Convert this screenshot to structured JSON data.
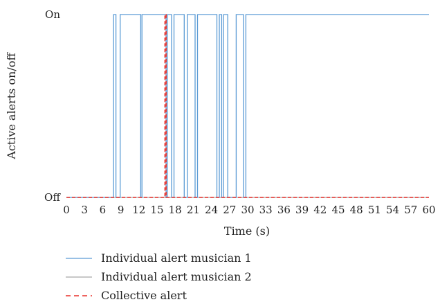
{
  "chart_data": {
    "type": "line",
    "title": "",
    "xlabel": "Time (s)",
    "ylabel": "Active alerts on/off",
    "xlim": [
      0,
      60
    ],
    "ylim": [
      0,
      1
    ],
    "x_ticks": [
      "0",
      "3",
      "6",
      "9",
      "12",
      "15",
      "18",
      "21",
      "24",
      "27",
      "30",
      "33",
      "36",
      "39",
      "42",
      "45",
      "48",
      "51",
      "54",
      "57",
      "60"
    ],
    "y_ticks": [
      {
        "value": 0,
        "label": "Off"
      },
      {
        "value": 1,
        "label": "On"
      }
    ],
    "grid": false,
    "legend_position": "bottom-left",
    "series": [
      {
        "name": "Individual alert musician 1",
        "color": "#5b9bd5",
        "style": "solid",
        "points": [
          [
            0,
            0
          ],
          [
            7.8,
            0
          ],
          [
            7.8,
            1
          ],
          [
            8.2,
            1
          ],
          [
            8.2,
            0
          ],
          [
            8.9,
            0
          ],
          [
            8.9,
            1
          ],
          [
            12.3,
            1
          ],
          [
            12.3,
            0
          ],
          [
            12.5,
            0
          ],
          [
            12.5,
            1
          ],
          [
            16.5,
            1
          ],
          [
            16.5,
            0
          ],
          [
            16.7,
            0
          ],
          [
            16.7,
            1
          ],
          [
            17.4,
            1
          ],
          [
            17.4,
            0
          ],
          [
            17.8,
            0
          ],
          [
            17.8,
            1
          ],
          [
            19.5,
            1
          ],
          [
            19.5,
            0
          ],
          [
            20.0,
            0
          ],
          [
            20.0,
            1
          ],
          [
            21.3,
            1
          ],
          [
            21.3,
            0
          ],
          [
            21.7,
            0
          ],
          [
            21.7,
            1
          ],
          [
            24.9,
            1
          ],
          [
            24.9,
            0
          ],
          [
            25.3,
            0
          ],
          [
            25.3,
            1
          ],
          [
            25.7,
            1
          ],
          [
            25.7,
            0
          ],
          [
            26.0,
            0
          ],
          [
            26.0,
            1
          ],
          [
            26.7,
            1
          ],
          [
            26.7,
            0
          ],
          [
            28.1,
            0
          ],
          [
            28.1,
            1
          ],
          [
            29.3,
            1
          ],
          [
            29.3,
            0
          ],
          [
            29.7,
            0
          ],
          [
            29.7,
            1
          ],
          [
            60,
            1
          ]
        ]
      },
      {
        "name": "Individual alert musician 2",
        "color": "#a6a6a6",
        "style": "solid",
        "points": [
          [
            0,
            0
          ],
          [
            60,
            0
          ]
        ]
      },
      {
        "name": "Collective alert",
        "color": "#e8302a",
        "style": "dashed",
        "points": [
          [
            0,
            0
          ],
          [
            16.3,
            0
          ],
          [
            16.3,
            1
          ],
          [
            16.5,
            1
          ],
          [
            16.5,
            0
          ],
          [
            60,
            0
          ]
        ]
      }
    ]
  }
}
